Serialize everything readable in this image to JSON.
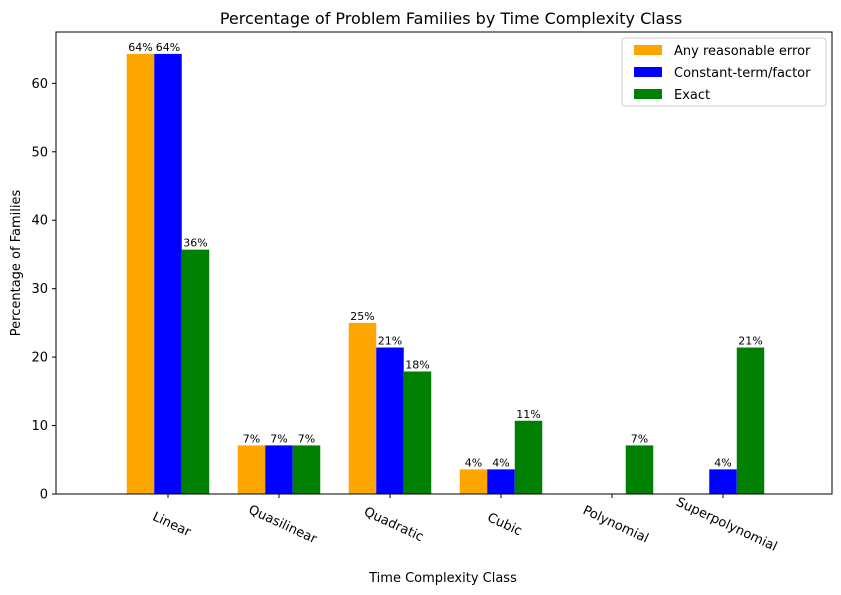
{
  "chart_data": {
    "type": "bar",
    "title": "Percentage of Problem Families by Time Complexity Class",
    "xlabel": "Time Complexity Class",
    "ylabel": "Percentage of Families",
    "categories": [
      "Linear",
      "Quasilinear",
      "Quadratic",
      "Cubic",
      "Polynomial",
      "Superpolynomial"
    ],
    "ylim": [
      0,
      67.5
    ],
    "yticks": [
      0,
      10,
      20,
      30,
      40,
      50,
      60
    ],
    "grid": false,
    "legend_position": "top-right",
    "series": [
      {
        "name": "Any reasonable error",
        "color": "#ffa500",
        "values": [
          64.3,
          7.1,
          25.0,
          3.6,
          0,
          0
        ],
        "labels": [
          "64%",
          "7%",
          "25%",
          "4%",
          null,
          null
        ]
      },
      {
        "name": "Constant-term/factor",
        "color": "#0000ff",
        "values": [
          64.3,
          7.1,
          21.4,
          3.6,
          0,
          3.6
        ],
        "labels": [
          "64%",
          "7%",
          "21%",
          "4%",
          null,
          "4%"
        ]
      },
      {
        "name": "Exact",
        "color": "#008000",
        "values": [
          35.7,
          7.1,
          17.9,
          10.7,
          7.1,
          21.4
        ],
        "labels": [
          "36%",
          "7%",
          "18%",
          "11%",
          "7%",
          "21%"
        ]
      }
    ]
  }
}
